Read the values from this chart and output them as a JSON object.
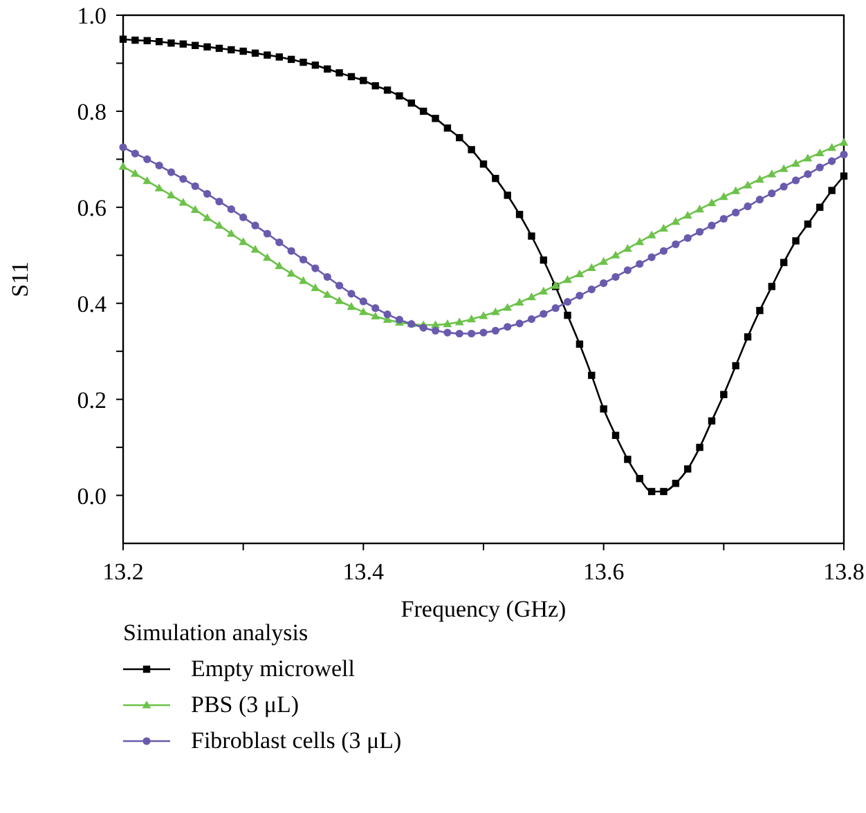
{
  "chart_data": {
    "type": "line",
    "xlabel": "Frequency (GHz)",
    "ylabel": "S11",
    "legend_title": "Simulation analysis",
    "legend": "bottom",
    "grid": false,
    "line_style": "solid",
    "xlim": [
      13.2,
      13.8
    ],
    "ylim": [
      -0.1,
      1.0
    ],
    "xticks": [
      13.2,
      {
        "value": 13.3,
        "label": null
      },
      13.4,
      {
        "value": 13.5,
        "label": null
      },
      13.6,
      {
        "value": 13.7,
        "label": null
      },
      13.8
    ],
    "yticks": [
      {
        "value": 0,
        "label": "0.0"
      },
      {
        "value": 0.1,
        "label": null
      },
      0.2,
      {
        "value": 0.3,
        "label": null
      },
      0.4,
      {
        "value": 0.5,
        "label": null
      },
      0.6,
      {
        "value": 0.7,
        "label": null
      },
      0.8,
      {
        "value": 0.9,
        "label": null
      },
      {
        "value": 1,
        "label": "1.0"
      }
    ],
    "x": [
      13.2,
      13.21,
      13.22,
      13.23,
      13.24,
      13.25,
      13.26,
      13.27,
      13.28,
      13.29,
      13.3,
      13.31,
      13.32,
      13.33,
      13.34,
      13.35,
      13.36,
      13.37,
      13.38,
      13.39,
      13.4,
      13.41,
      13.42,
      13.43,
      13.44,
      13.45,
      13.46,
      13.47,
      13.48,
      13.49,
      13.5,
      13.51,
      13.52,
      13.53,
      13.54,
      13.55,
      13.56,
      13.57,
      13.58,
      13.59,
      13.6,
      13.61,
      13.62,
      13.63,
      13.64,
      13.65,
      13.66,
      13.67,
      13.68,
      13.69,
      13.7,
      13.71,
      13.72,
      13.73,
      13.74,
      13.75,
      13.76,
      13.77,
      13.78,
      13.79,
      13.8
    ],
    "series": [
      {
        "name": "Empty microwell",
        "color": "#000000",
        "marker": "square",
        "values": [
          0.95,
          0.948,
          0.947,
          0.945,
          0.942,
          0.94,
          0.937,
          0.934,
          0.931,
          0.928,
          0.925,
          0.921,
          0.917,
          0.913,
          0.908,
          0.902,
          0.896,
          0.888,
          0.88,
          0.872,
          0.864,
          0.853,
          0.844,
          0.832,
          0.817,
          0.8,
          0.785,
          0.765,
          0.745,
          0.72,
          0.69,
          0.66,
          0.625,
          0.585,
          0.54,
          0.49,
          0.435,
          0.375,
          0.315,
          0.25,
          0.18,
          0.125,
          0.075,
          0.035,
          0.008,
          0.008,
          0.025,
          0.055,
          0.1,
          0.155,
          0.21,
          0.27,
          0.33,
          0.385,
          0.435,
          0.485,
          0.53,
          0.565,
          0.6,
          0.635,
          0.665
        ]
      },
      {
        "name": "PBS (3 μL)",
        "color": "#6cc24a",
        "marker": "triangle",
        "values": [
          0.685,
          0.67,
          0.655,
          0.64,
          0.625,
          0.61,
          0.595,
          0.578,
          0.562,
          0.545,
          0.528,
          0.512,
          0.495,
          0.478,
          0.462,
          0.447,
          0.432,
          0.418,
          0.405,
          0.393,
          0.382,
          0.373,
          0.366,
          0.36,
          0.357,
          0.355,
          0.355,
          0.357,
          0.361,
          0.367,
          0.374,
          0.382,
          0.391,
          0.402,
          0.413,
          0.425,
          0.437,
          0.449,
          0.461,
          0.474,
          0.487,
          0.5,
          0.514,
          0.528,
          0.542,
          0.556,
          0.57,
          0.583,
          0.596,
          0.609,
          0.622,
          0.634,
          0.646,
          0.658,
          0.669,
          0.68,
          0.691,
          0.702,
          0.713,
          0.724,
          0.735
        ]
      },
      {
        "name": "Fibroblast cells (3 μL)",
        "color": "#6a5aad",
        "marker": "circle",
        "values": [
          0.725,
          0.712,
          0.7,
          0.687,
          0.673,
          0.659,
          0.644,
          0.628,
          0.612,
          0.596,
          0.579,
          0.562,
          0.545,
          0.527,
          0.509,
          0.491,
          0.473,
          0.455,
          0.437,
          0.42,
          0.404,
          0.39,
          0.377,
          0.366,
          0.357,
          0.349,
          0.343,
          0.339,
          0.337,
          0.337,
          0.339,
          0.343,
          0.351,
          0.358,
          0.367,
          0.378,
          0.39,
          0.403,
          0.416,
          0.429,
          0.442,
          0.455,
          0.469,
          0.482,
          0.496,
          0.509,
          0.523,
          0.536,
          0.549,
          0.562,
          0.576,
          0.589,
          0.602,
          0.616,
          0.629,
          0.643,
          0.656,
          0.669,
          0.683,
          0.696,
          0.71
        ]
      }
    ]
  }
}
